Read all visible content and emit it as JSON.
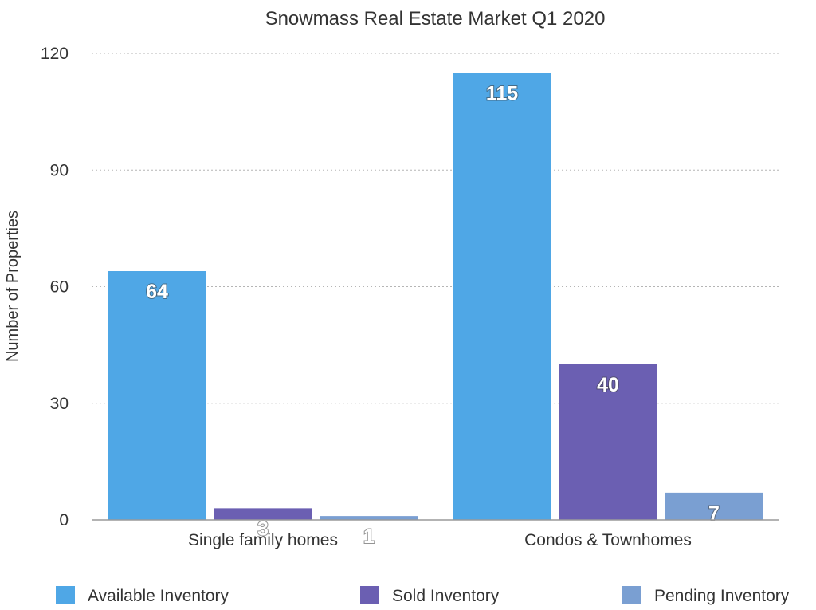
{
  "chart_data": {
    "type": "bar",
    "title": "Snowmass Real Estate Market Q1 2020",
    "xlabel": "",
    "ylabel": "Number of Properties",
    "ylim": [
      0,
      120
    ],
    "yticks": [
      0,
      30,
      60,
      90,
      120
    ],
    "grid": true,
    "legend_position": "bottom",
    "categories": [
      "Single family homes",
      "Condos & Townhomes"
    ],
    "series": [
      {
        "name": "Available Inventory",
        "values": [
          64,
          115
        ],
        "color": "#4FA7E6"
      },
      {
        "name": "Sold Inventory",
        "values": [
          3,
          40
        ],
        "color": "#6B5FB2"
      },
      {
        "name": "Pending Inventory",
        "values": [
          1,
          7
        ],
        "color": "#7A9FD2"
      }
    ]
  }
}
